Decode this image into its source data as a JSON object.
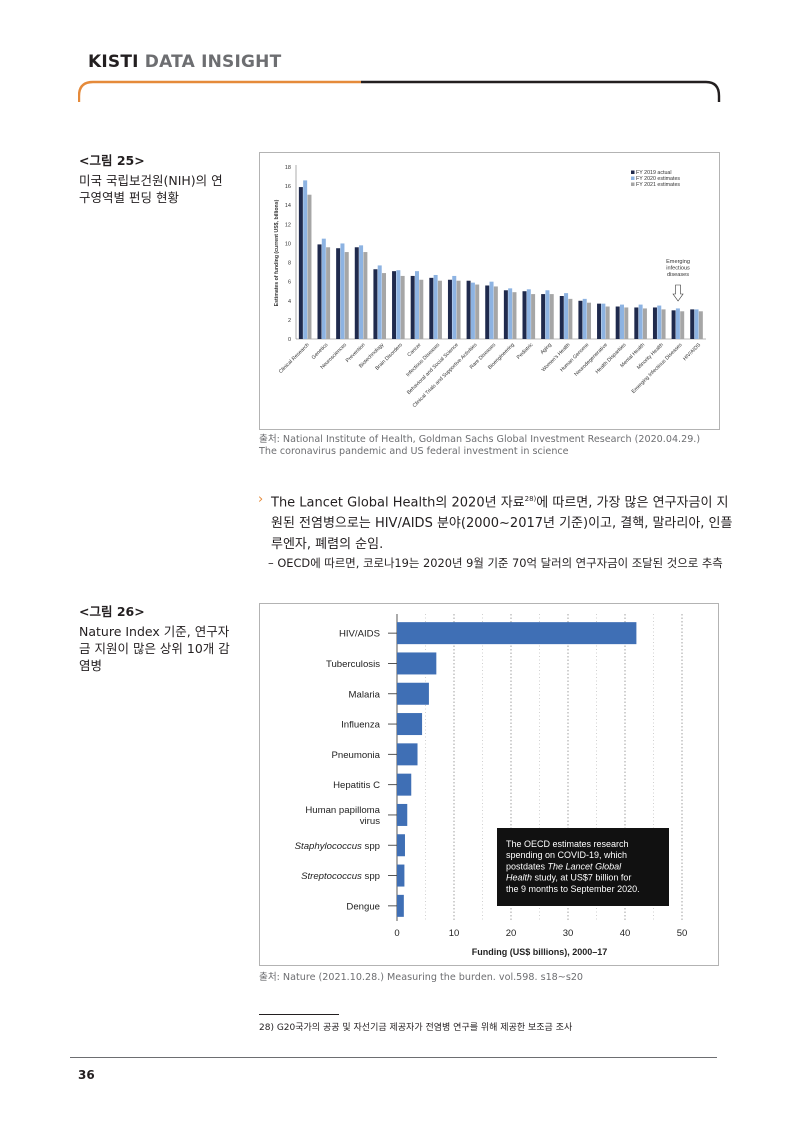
{
  "header": {
    "brand_bold": "KISTI",
    "brand_rest": "DATA INSIGHT",
    "accent_color": "#e58a3a",
    "line_color": "#231f20"
  },
  "figure25": {
    "number": "<그림 25>",
    "caption": "미국 국립보건원(NIH)의 연구영역별 펀딩 현황",
    "source": "출처: National Institute of Health, Goldman Sachs Global Investment Research (2020.04.29.) The coronavirus pandemic and US federal investment in science"
  },
  "figure26": {
    "number": "<그림 26>",
    "caption": "Nature Index 기준, 연구자금 지원이 많은 상위 10개 감염병",
    "source": "출처: Nature (2021.10.28.) Measuring the burden. vol.598. s18~s20"
  },
  "paragraph": {
    "bullet": "›",
    "text_before_sup": "The Lancet Global Health의 2020년 자료",
    "sup": "28)",
    "text_after_sup": "에 따르면, 가장 많은 연구자금이 지원된 전염병으로는 HIV/AIDS 분야(2000~2017년 기준)이고, 결핵, 말라리아, 인플루엔자, 폐렴의 순임.",
    "sub": "– OECD에 따르면, 코로나19는 2020년 9월 기준 70억 달러의 연구자금이 조달된 것으로 추측"
  },
  "footnote": "28) G20국가의 공공 및 자선기금 제공자가 전염병 연구를 위해 제공한 보조금 조사",
  "page_number": "36",
  "chart_data": [
    {
      "type": "bar",
      "ylabel": "Estimates of funding (current US$, billions)",
      "ylim": [
        0,
        18
      ],
      "yticks": [
        0,
        2,
        4,
        6,
        8,
        10,
        12,
        14,
        16,
        18
      ],
      "legend_position": "top-right",
      "categories": [
        "Clinical Research",
        "Genetics",
        "Neurosciences",
        "Prevention",
        "Biotechnology",
        "Brain Disorders",
        "Cancer",
        "Infectious Diseases",
        "Behavioral and Social Science",
        "Clinical Trials and Supportive Activities",
        "Rare Diseases",
        "Bioengineering",
        "Pediatric",
        "Aging",
        "Women's Health",
        "Human Genome",
        "Neurodegenerative",
        "Health Disparities",
        "Mental Health",
        "Minority Health",
        "Emerging Infectious Diseases",
        "HIV/AIDS"
      ],
      "series": [
        {
          "name": "FY 2019 actual",
          "color": "#1f2a4d",
          "values": [
            15.9,
            9.9,
            9.5,
            9.6,
            7.3,
            7.1,
            6.6,
            6.4,
            6.2,
            6.1,
            5.6,
            5.1,
            5.0,
            4.7,
            4.5,
            4.0,
            3.7,
            3.4,
            3.3,
            3.3,
            3.0,
            3.1
          ]
        },
        {
          "name": "FY 2020 estimates",
          "color": "#8db3e2",
          "values": [
            16.6,
            10.5,
            10.0,
            9.8,
            7.7,
            7.2,
            7.1,
            6.7,
            6.6,
            5.9,
            6.0,
            5.3,
            5.2,
            5.1,
            4.8,
            4.2,
            3.7,
            3.6,
            3.6,
            3.5,
            3.2,
            3.1
          ]
        },
        {
          "name": "FY 2021 estimates",
          "color": "#a6a6a6",
          "values": [
            15.1,
            9.6,
            9.1,
            9.1,
            6.9,
            6.6,
            6.2,
            6.1,
            6.1,
            5.7,
            5.5,
            4.9,
            4.7,
            4.7,
            4.2,
            3.8,
            3.4,
            3.3,
            3.2,
            3.1,
            2.9,
            2.9
          ]
        }
      ],
      "annotation": {
        "text": [
          "Emerging",
          "infectious",
          "diseases"
        ],
        "category": "Emerging Infectious Diseases"
      }
    },
    {
      "type": "bar",
      "orientation": "horizontal",
      "xlabel": "Funding (US$ billions), 2000–17",
      "xlim": [
        0,
        50
      ],
      "xticks": [
        0,
        10,
        20,
        30,
        40,
        50
      ],
      "color": "#3f6fb5",
      "categories": [
        "HIV/AIDS",
        "Tuberculosis",
        "Malaria",
        "Influenza",
        "Pneumonia",
        "Hepatitis C",
        "Human papilloma virus",
        "Staphylococcus spp",
        "Streptococcus spp",
        "Dengue"
      ],
      "category_lines": [
        [
          "HIV/AIDS"
        ],
        [
          "Tuberculosis"
        ],
        [
          "Malaria"
        ],
        [
          "Influenza"
        ],
        [
          "Pneumonia"
        ],
        [
          "Hepatitis C"
        ],
        [
          "Human papilloma",
          "virus"
        ],
        [
          "Staphylococcus spp"
        ],
        [
          "Streptococcus spp"
        ],
        [
          "Dengue"
        ]
      ],
      "category_italic": [
        false,
        false,
        false,
        false,
        false,
        false,
        false,
        true,
        true,
        false
      ],
      "values": [
        42.0,
        6.9,
        5.6,
        4.4,
        3.6,
        2.5,
        1.8,
        1.4,
        1.3,
        1.2
      ],
      "annotation": {
        "lines": [
          "The OECD estimates research",
          "spending on COVID-19, which",
          "postdates The Lancet Global",
          "Health study, at US$7 billion for",
          "the 9 months to September 2020."
        ]
      }
    }
  ]
}
